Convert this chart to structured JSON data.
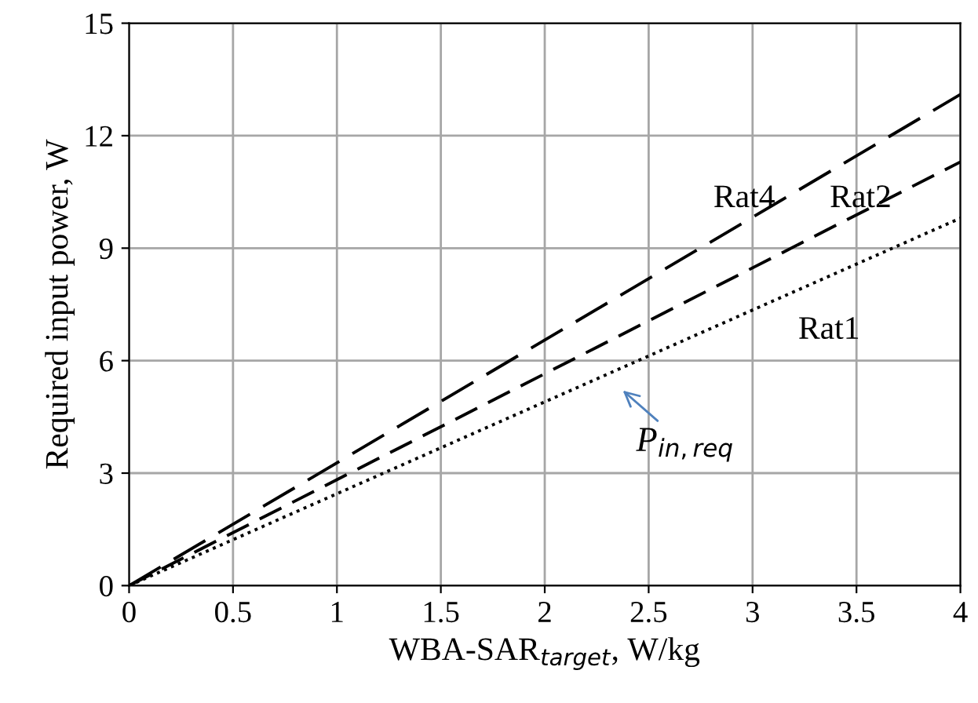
{
  "chart_data": {
    "type": "line",
    "xlabel": "WBA-SAR$_{target}$, W/kg",
    "ylabel": "Required input power, W",
    "x": [
      0,
      4
    ],
    "series": [
      {
        "name": "Rat4",
        "color": "#000000",
        "values": [
          0,
          13.1
        ],
        "line_style": "dashed"
      },
      {
        "name": "Rat2",
        "color": "#000000",
        "values": [
          0,
          11.3
        ],
        "line_style": "dashed"
      },
      {
        "name": "Rat1",
        "color": "#000000",
        "values": [
          0,
          9.8
        ],
        "line_style": "dotted"
      }
    ],
    "xlim": [
      0,
      4
    ],
    "ylim": [
      0,
      15
    ],
    "xticks": [
      0,
      0.5,
      1,
      1.5,
      2,
      2.5,
      3,
      3.5,
      4
    ],
    "yticks": [
      0,
      3,
      6,
      9,
      12,
      15
    ],
    "grid": true,
    "legend": false,
    "marker": "none",
    "annotations": [
      "P$_{in,req}$"
    ]
  }
}
